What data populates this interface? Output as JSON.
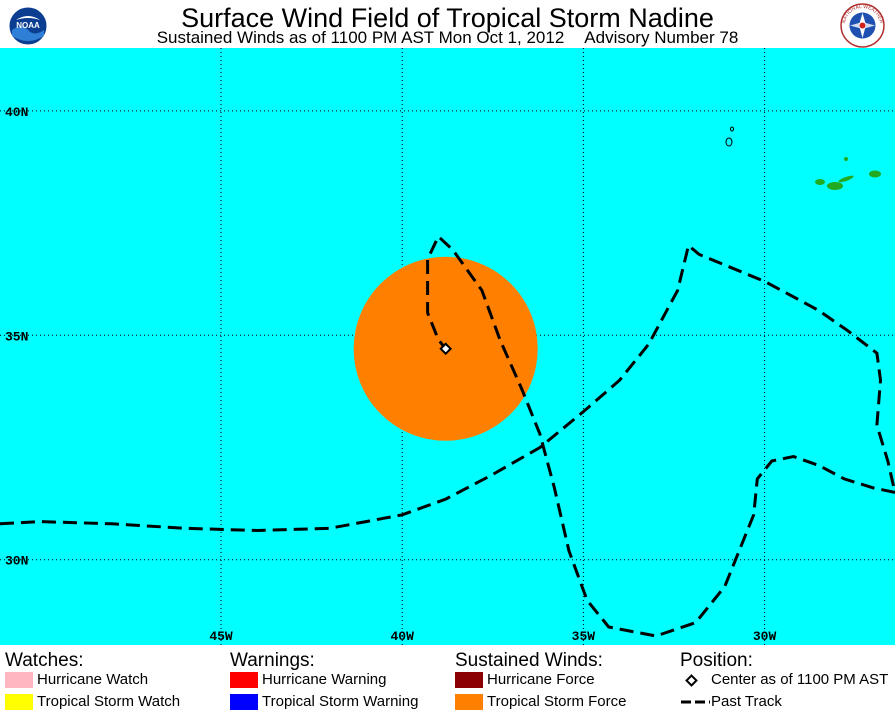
{
  "header": {
    "title": "Surface Wind Field of Tropical Storm Nadine",
    "subtitle_left": "Sustained Winds as of 1100 PM AST Mon Oct 1, 2012",
    "subtitle_right": "Advisory Number 78"
  },
  "logos": {
    "left": {
      "icon": "noaa-logo",
      "text": "NOAA"
    },
    "right": {
      "icon": "national-weather-service-logo",
      "text": "NATIONAL WEATHER SERVICE"
    }
  },
  "map": {
    "background_color": "#00ffff",
    "land_color": "#22aa22",
    "lat_labels": [
      "40N",
      "35N",
      "30N"
    ],
    "lon_labels": [
      "45W",
      "40W",
      "35W",
      "30W"
    ],
    "bounds": {
      "lon_min": -51.1,
      "lon_max": -26.4,
      "lat_min": 28.1,
      "lat_max": 41.4
    },
    "gridlines": {
      "lats": [
        40,
        35,
        30
      ],
      "lons": [
        -45,
        -40,
        -35,
        -30
      ],
      "style": "dotted"
    },
    "storm_center": {
      "lat": 34.7,
      "lon": -38.8
    },
    "tropical_storm_force_radius_deg": 2.05,
    "past_track": [
      [
        30.8,
        -51.1
      ],
      [
        30.85,
        -50.0
      ],
      [
        30.8,
        -48.0
      ],
      [
        30.7,
        -46.0
      ],
      [
        30.65,
        -44.0
      ],
      [
        30.7,
        -42.0
      ],
      [
        30.85,
        -41.0
      ],
      [
        31.0,
        -40.0
      ],
      [
        31.35,
        -38.8
      ],
      [
        31.9,
        -37.5
      ],
      [
        32.5,
        -36.2
      ],
      [
        33.3,
        -35.0
      ],
      [
        34.0,
        -34.0
      ],
      [
        34.8,
        -33.2
      ],
      [
        36.0,
        -32.4
      ],
      [
        37.0,
        -32.1
      ],
      [
        36.8,
        -31.8
      ],
      [
        36.6,
        -31.2
      ],
      [
        36.2,
        -30.0
      ],
      [
        35.9,
        -29.3
      ],
      [
        35.55,
        -28.5
      ],
      [
        35.1,
        -27.7
      ],
      [
        34.6,
        -26.9
      ],
      [
        34.0,
        -26.8
      ],
      [
        33.0,
        -26.9
      ],
      [
        32.2,
        -26.6
      ],
      [
        31.5,
        -26.4
      ]
    ],
    "track_loop": [
      [
        31.5,
        -26.4
      ],
      [
        31.6,
        -27.0
      ],
      [
        31.8,
        -27.8
      ],
      [
        32.1,
        -28.5
      ],
      [
        32.3,
        -29.2
      ],
      [
        32.2,
        -29.8
      ],
      [
        31.8,
        -30.2
      ],
      [
        31.0,
        -30.3
      ],
      [
        30.2,
        -30.7
      ],
      [
        29.4,
        -31.1
      ],
      [
        28.6,
        -31.9
      ],
      [
        28.3,
        -33.0
      ],
      [
        28.5,
        -34.3
      ],
      [
        29.1,
        -34.9
      ],
      [
        30.2,
        -35.4
      ],
      [
        31.6,
        -35.8
      ],
      [
        32.8,
        -36.2
      ],
      [
        33.8,
        -36.7
      ],
      [
        34.9,
        -37.3
      ],
      [
        36.0,
        -37.8
      ],
      [
        36.9,
        -38.6
      ],
      [
        37.2,
        -39.0
      ],
      [
        36.7,
        -39.3
      ],
      [
        35.5,
        -39.3
      ],
      [
        34.9,
        -39.0
      ],
      [
        34.7,
        -38.8
      ]
    ]
  },
  "legend": {
    "watches": {
      "heading": "Watches:",
      "items": [
        {
          "label": "Hurricane Watch",
          "color": "#ffb6c1"
        },
        {
          "label": "Tropical Storm Watch",
          "color": "#ffff00"
        }
      ]
    },
    "warnings": {
      "heading": "Warnings:",
      "items": [
        {
          "label": "Hurricane Warning",
          "color": "#ff0000"
        },
        {
          "label": "Tropical Storm Warning",
          "color": "#0000ff"
        }
      ]
    },
    "winds": {
      "heading": "Sustained Winds:",
      "items": [
        {
          "label": "Hurricane Force",
          "color": "#8b0000"
        },
        {
          "label": "Tropical Storm Force",
          "color": "#ff8000"
        }
      ]
    },
    "position": {
      "heading": "Position:",
      "center_label": "Center as of 1100 PM AST",
      "track_label": "Past Track"
    }
  }
}
